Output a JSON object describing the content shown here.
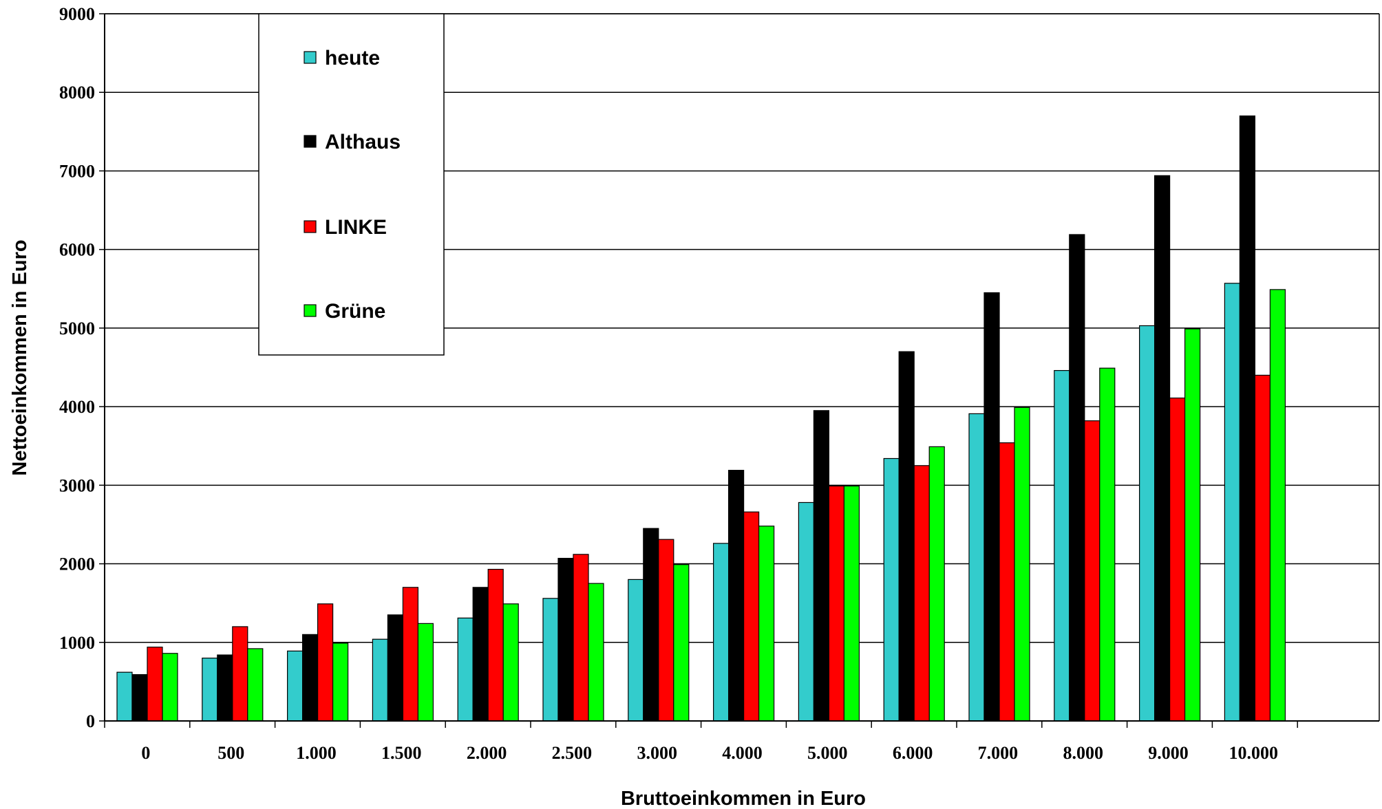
{
  "chart_data": {
    "type": "bar",
    "title": "",
    "xlabel": "Bruttoeinkommen in Euro",
    "ylabel": "Nettoeinkommen in Euro",
    "ylim": [
      0,
      9000
    ],
    "yticks": [
      "0",
      "1000",
      "2000",
      "3000",
      "4000",
      "5000",
      "6000",
      "7000",
      "8000",
      "9000"
    ],
    "categories": [
      "0",
      "500",
      "1.000",
      "1.500",
      "2.000",
      "2.500",
      "3.000",
      "4.000",
      "5.000",
      "6.000",
      "7.000",
      "8.000",
      "9.000",
      "10.000"
    ],
    "grid": true,
    "legend_position": "top-left",
    "series": [
      {
        "name": "heute",
        "color": "#33CCCC",
        "values": [
          620,
          800,
          890,
          1040,
          1310,
          1560,
          1800,
          2260,
          2780,
          3340,
          3910,
          4460,
          5030,
          5570
        ]
      },
      {
        "name": "Althaus",
        "color": "#000000",
        "values": [
          590,
          840,
          1100,
          1350,
          1700,
          2070,
          2450,
          3190,
          3950,
          4700,
          5450,
          6190,
          6940,
          7700
        ]
      },
      {
        "name": "LINKE",
        "color": "#FF0000",
        "values": [
          940,
          1200,
          1490,
          1700,
          1930,
          2120,
          2310,
          2660,
          2990,
          3250,
          3540,
          3820,
          4110,
          4400
        ]
      },
      {
        "name": "Grüne",
        "color": "#00FF00",
        "values": [
          860,
          920,
          990,
          1240,
          1490,
          1750,
          1990,
          2480,
          2990,
          3490,
          3990,
          4490,
          4990,
          5490
        ]
      }
    ]
  }
}
